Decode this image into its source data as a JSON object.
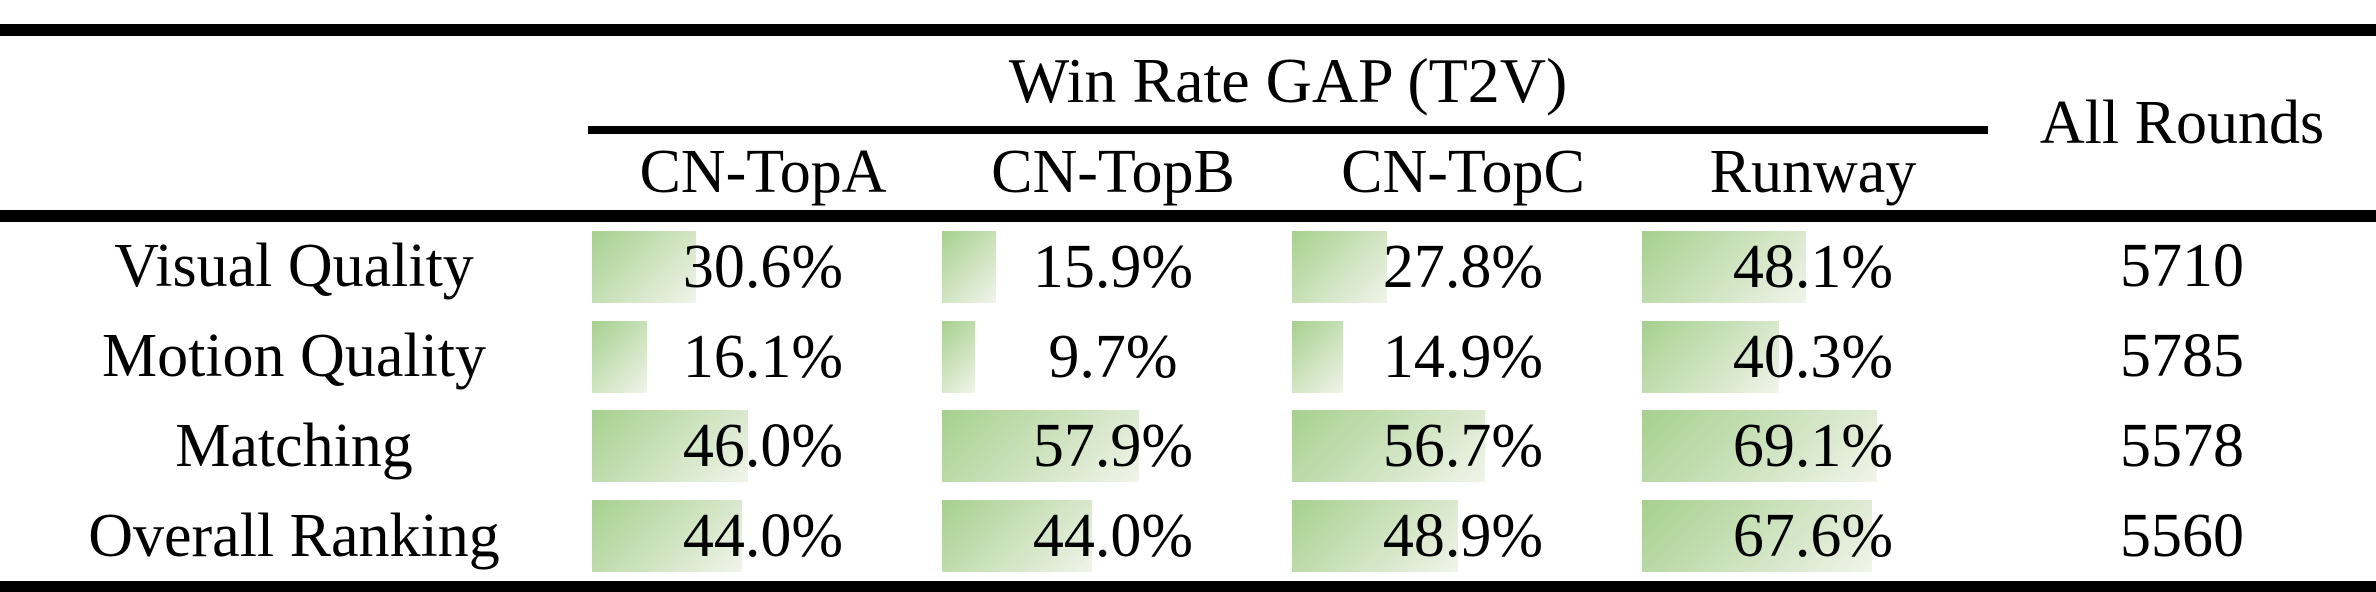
{
  "table": {
    "group_header": "Win Rate GAP (T2V)",
    "all_rounds_header": "All Rounds",
    "model_columns": [
      "CN-TopA",
      "CN-TopB",
      "CN-TopC",
      "Runway"
    ],
    "rows": [
      {
        "label": "Visual Quality",
        "win_rates": [
          "30.6%",
          "15.9%",
          "27.8%",
          "48.1%"
        ],
        "all_rounds": "5710"
      },
      {
        "label": "Motion Quality",
        "win_rates": [
          "16.1%",
          "9.7%",
          "14.9%",
          "40.3%"
        ],
        "all_rounds": "5785"
      },
      {
        "label": "Matching",
        "win_rates": [
          "46.0%",
          "57.9%",
          "56.7%",
          "69.1%"
        ],
        "all_rounds": "5578"
      },
      {
        "label": "Overall Ranking",
        "win_rates": [
          "44.0%",
          "44.0%",
          "48.9%",
          "67.6%"
        ],
        "all_rounds": "5560"
      }
    ]
  },
  "colors": {
    "bar_gradient_start": "#a6d08e",
    "bar_gradient_end": "#f1f4ea",
    "rule_color": "#000000",
    "background": "#ffffff"
  },
  "chart_data": {
    "type": "table",
    "title": "Win Rate GAP (T2V)",
    "categories": [
      "Visual Quality",
      "Motion Quality",
      "Matching",
      "Overall Ranking"
    ],
    "series": [
      {
        "name": "CN-TopA",
        "unit": "%",
        "values": [
          30.6,
          16.1,
          46.0,
          44.0
        ]
      },
      {
        "name": "CN-TopB",
        "unit": "%",
        "values": [
          15.9,
          9.7,
          57.9,
          44.0
        ]
      },
      {
        "name": "CN-TopC",
        "unit": "%",
        "values": [
          27.8,
          14.9,
          56.7,
          48.9
        ]
      },
      {
        "name": "Runway",
        "unit": "%",
        "values": [
          48.1,
          40.3,
          69.1,
          67.6
        ]
      },
      {
        "name": "All Rounds",
        "unit": "rounds",
        "values": [
          5710,
          5785,
          5578,
          5560
        ]
      }
    ],
    "layout": {
      "bars": "horizontal-databar-in-cell",
      "bar_scale_max_percent": 100,
      "grid": false,
      "legend": false
    }
  }
}
